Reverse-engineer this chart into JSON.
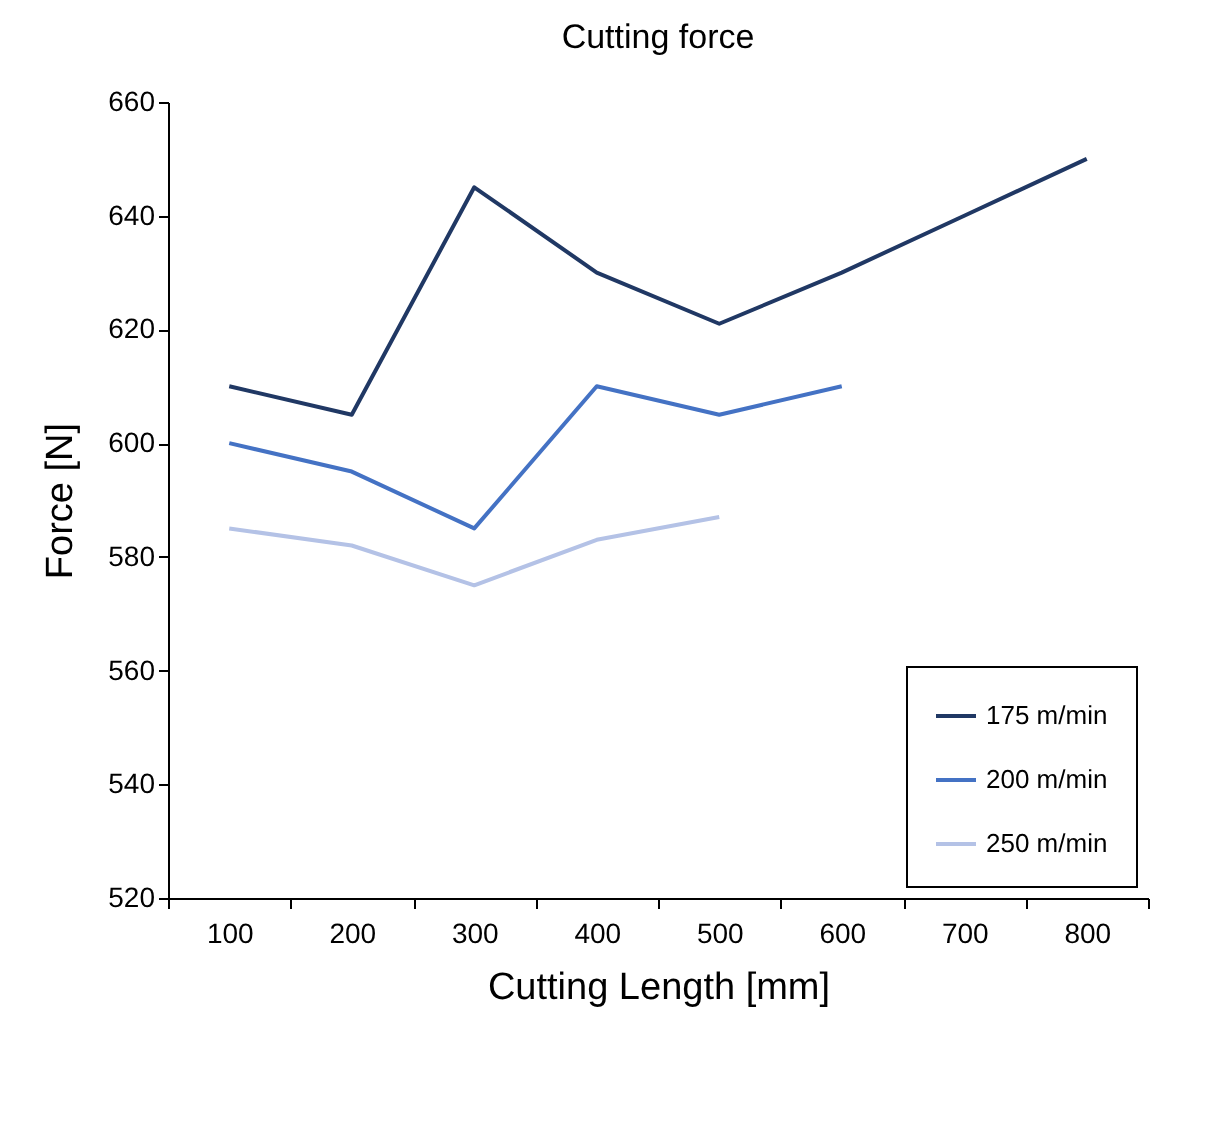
{
  "chart_data": {
    "type": "line",
    "title": "Cutting force",
    "xlabel": "Cutting Length [mm]",
    "ylabel": "Force [N]",
    "categories": [
      "100",
      "200",
      "300",
      "400",
      "500",
      "600",
      "700",
      "800"
    ],
    "series": [
      {
        "name": "175 m/min",
        "color": "#203864",
        "values": [
          610,
          605,
          645,
          630,
          621,
          630,
          640,
          650
        ]
      },
      {
        "name": "200 m/min",
        "color": "#4472c4",
        "values": [
          600,
          595,
          585,
          610,
          605,
          610,
          null,
          null
        ]
      },
      {
        "name": "250 m/min",
        "color": "#b4c2e6",
        "values": [
          585,
          582,
          575,
          583,
          587,
          null,
          null,
          null
        ]
      }
    ],
    "ylim": [
      520,
      660
    ],
    "yticks": [
      520,
      540,
      560,
      580,
      600,
      620,
      640,
      660
    ],
    "grid": false,
    "legend": "bottom right",
    "marker": "none",
    "line_style": "solid"
  }
}
